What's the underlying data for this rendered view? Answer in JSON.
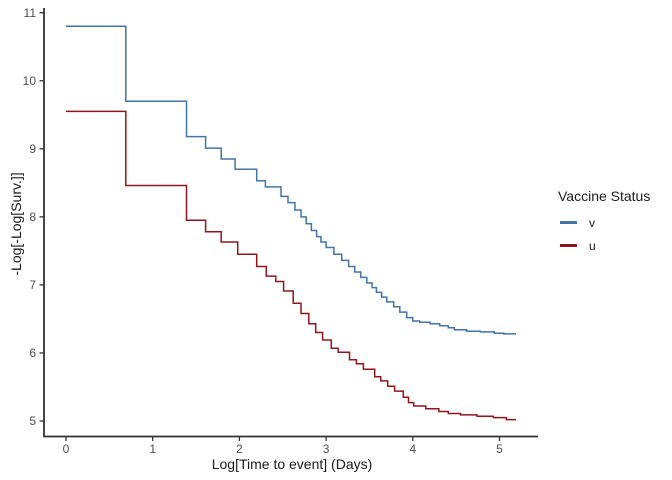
{
  "chart_data": {
    "type": "line",
    "subtype": "step-post",
    "title": "",
    "xlabel": "Log[Time to event] (Days)",
    "ylabel": "-Log[-Log[Surv.]]",
    "xlim": [
      -0.25,
      5.45
    ],
    "ylim": [
      4.78,
      11.08
    ],
    "x_ticks": [
      0,
      1,
      2,
      3,
      4,
      5
    ],
    "y_ticks": [
      5,
      6,
      7,
      8,
      9,
      10,
      11
    ],
    "grid": false,
    "axis_color": "#333333",
    "tick_label_color": "#4d4d4d",
    "legend": {
      "title": "Vaccine Status",
      "position": "right"
    },
    "series": [
      {
        "name": "v",
        "color": "#4473A5",
        "x_end": 5.19,
        "points": [
          [
            0.0,
            10.8
          ],
          [
            0.69,
            9.7
          ],
          [
            1.39,
            9.18
          ],
          [
            1.61,
            9.01
          ],
          [
            1.79,
            8.85
          ],
          [
            1.95,
            8.7
          ],
          [
            2.2,
            8.53
          ],
          [
            2.3,
            8.44
          ],
          [
            2.48,
            8.3
          ],
          [
            2.56,
            8.21
          ],
          [
            2.64,
            8.1
          ],
          [
            2.71,
            8.0
          ],
          [
            2.77,
            7.9
          ],
          [
            2.83,
            7.8
          ],
          [
            2.89,
            7.71
          ],
          [
            2.94,
            7.63
          ],
          [
            3.0,
            7.55
          ],
          [
            3.09,
            7.45
          ],
          [
            3.18,
            7.36
          ],
          [
            3.26,
            7.27
          ],
          [
            3.33,
            7.19
          ],
          [
            3.4,
            7.11
          ],
          [
            3.47,
            7.03
          ],
          [
            3.53,
            6.96
          ],
          [
            3.58,
            6.89
          ],
          [
            3.64,
            6.82
          ],
          [
            3.7,
            6.75
          ],
          [
            3.78,
            6.68
          ],
          [
            3.85,
            6.6
          ],
          [
            3.93,
            6.52
          ],
          [
            4.0,
            6.47
          ],
          [
            4.08,
            6.45
          ],
          [
            4.2,
            6.43
          ],
          [
            4.31,
            6.4
          ],
          [
            4.41,
            6.37
          ],
          [
            4.48,
            6.34
          ],
          [
            4.62,
            6.32
          ],
          [
            4.78,
            6.31
          ],
          [
            4.94,
            6.29
          ],
          [
            5.05,
            6.28
          ]
        ]
      },
      {
        "name": "u",
        "color": "#8F161D",
        "x_end": 5.19,
        "points": [
          [
            0.0,
            9.55
          ],
          [
            0.69,
            8.46
          ],
          [
            1.39,
            7.95
          ],
          [
            1.61,
            7.78
          ],
          [
            1.79,
            7.63
          ],
          [
            1.98,
            7.45
          ],
          [
            2.2,
            7.27
          ],
          [
            2.31,
            7.13
          ],
          [
            2.42,
            7.05
          ],
          [
            2.51,
            6.91
          ],
          [
            2.62,
            6.73
          ],
          [
            2.71,
            6.58
          ],
          [
            2.8,
            6.43
          ],
          [
            2.88,
            6.3
          ],
          [
            2.96,
            6.19
          ],
          [
            3.06,
            6.07
          ],
          [
            3.14,
            6.01
          ],
          [
            3.27,
            5.9
          ],
          [
            3.35,
            5.84
          ],
          [
            3.43,
            5.76
          ],
          [
            3.56,
            5.65
          ],
          [
            3.63,
            5.59
          ],
          [
            3.71,
            5.51
          ],
          [
            3.79,
            5.44
          ],
          [
            3.89,
            5.35
          ],
          [
            3.95,
            5.27
          ],
          [
            4.01,
            5.22
          ],
          [
            4.15,
            5.18
          ],
          [
            4.3,
            5.14
          ],
          [
            4.41,
            5.11
          ],
          [
            4.55,
            5.09
          ],
          [
            4.74,
            5.07
          ],
          [
            4.93,
            5.05
          ],
          [
            5.08,
            5.02
          ]
        ]
      }
    ]
  }
}
